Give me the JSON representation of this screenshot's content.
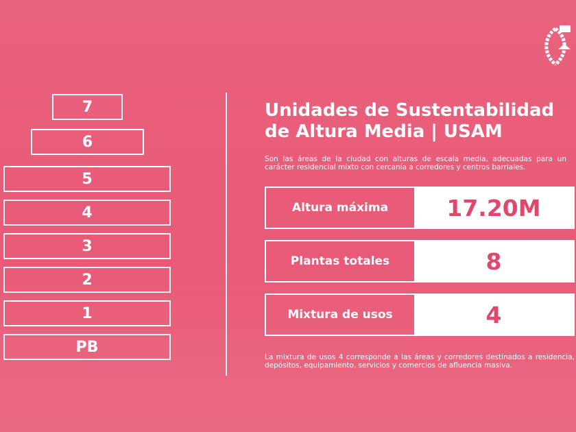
{
  "floors": [
    "7",
    "6",
    "5",
    "4",
    "3",
    "2",
    "1",
    "PB"
  ],
  "header": {
    "title_line1": "Unidades de Sustentabilidad",
    "title_line2": "de Altura Media | USAM",
    "description": "Son las áreas de la ciudad con alturas de escala media, adecuadas para un carácter residencial mixto con cercanía a corredores y centros barriales."
  },
  "stats": [
    {
      "label": "Altura máxima",
      "value": "17.20M"
    },
    {
      "label": "Plantas totales",
      "value": "8"
    },
    {
      "label": "Mixtura de usos",
      "value": "4"
    }
  ],
  "note": "La mixtura de usos 4 corresponde a las áreas y corredores destinados a residencia, depósitos, equipamiento, servicios y comercios de afluencia masiva."
}
